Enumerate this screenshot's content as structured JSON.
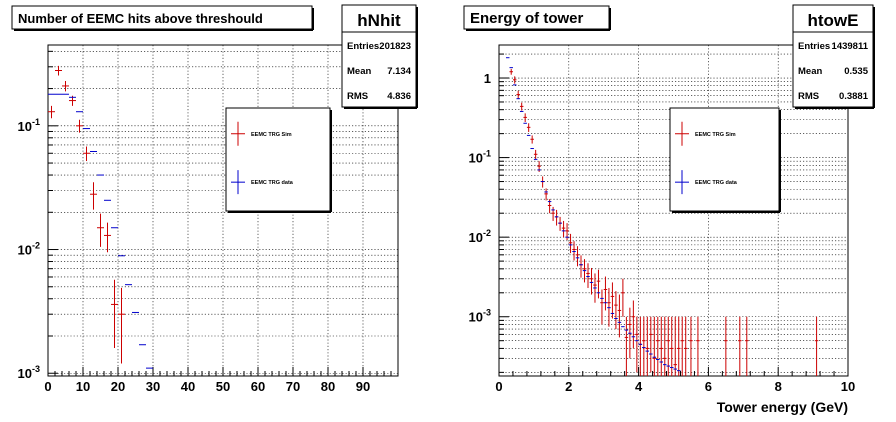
{
  "chart_data": [
    {
      "type": "scatter",
      "title": "Number of EEMC hits above threshould",
      "stats": {
        "name": "hNhit",
        "rows": [
          {
            "label": "Entries",
            "value": "201823"
          },
          {
            "label": "Mean",
            "value": "7.134"
          },
          {
            "label": "RMS",
            "value": "4.836"
          }
        ]
      },
      "xlabel": "",
      "ylabel": "",
      "xlim": [
        0,
        100
      ],
      "ylim": [
        0.00095,
        0.45
      ],
      "log_y": true,
      "grid": true,
      "x_ticks": [
        "0",
        "10",
        "20",
        "30",
        "40",
        "50",
        "60",
        "70",
        "80",
        "90"
      ],
      "y_ticks": [
        {
          "base": "10",
          "exp": "-1",
          "value": 0.1
        },
        {
          "base": "10",
          "exp": "-2",
          "value": 0.01
        },
        {
          "base": "10",
          "exp": "-3",
          "value": 0.001
        }
      ],
      "legend": {
        "position": "top-right",
        "entries": [
          "EEMC TRG Sim",
          "EEMC TRG data"
        ]
      },
      "series": [
        {
          "name": "EEMC TRG Sim",
          "color": "#cc0000",
          "bin_width": 2,
          "x": [
            1,
            3,
            5,
            7,
            9,
            11,
            13,
            15,
            17,
            19,
            21
          ],
          "y": [
            0.13,
            0.28,
            0.21,
            0.16,
            0.1,
            0.06,
            0.028,
            0.015,
            0.013,
            0.0036,
            0.003
          ],
          "err_lo": [
            0.115,
            0.255,
            0.19,
            0.145,
            0.088,
            0.052,
            0.021,
            0.0105,
            0.0095,
            0.0016,
            0.0012
          ],
          "err_hi": [
            0.145,
            0.305,
            0.23,
            0.175,
            0.112,
            0.068,
            0.035,
            0.0195,
            0.0165,
            0.0057,
            0.0049
          ]
        },
        {
          "name": "EEMC TRG data",
          "color": "#0000cc",
          "bin_width": 2,
          "x": [
            1,
            3,
            5,
            7,
            9,
            11,
            13,
            15,
            17,
            19,
            21,
            23,
            25,
            27,
            29
          ],
          "y": [
            0.18,
            0.18,
            0.18,
            0.17,
            0.13,
            0.095,
            0.062,
            0.04,
            0.025,
            0.015,
            0.0089,
            0.0052,
            0.0031,
            0.0017,
            0.0011
          ]
        }
      ]
    },
    {
      "type": "scatter",
      "title": "Energy of tower",
      "stats": {
        "name": "htowE",
        "rows": [
          {
            "label": "Entries",
            "value": "1439811"
          },
          {
            "label": "Mean",
            "value": "0.535"
          },
          {
            "label": "RMS",
            "value": "0.3881"
          }
        ]
      },
      "xlabel": "Tower energy (GeV)",
      "ylabel": "",
      "xlim": [
        0,
        10
      ],
      "ylim": [
        0.00018,
        2.6
      ],
      "log_y": true,
      "grid": true,
      "x_ticks": [
        "0",
        "2",
        "4",
        "6",
        "8",
        "10"
      ],
      "y_ticks": [
        {
          "base": "1",
          "exp": "",
          "value": 1
        },
        {
          "base": "10",
          "exp": "-1",
          "value": 0.1
        },
        {
          "base": "10",
          "exp": "-2",
          "value": 0.01
        },
        {
          "base": "10",
          "exp": "-3",
          "value": 0.001
        }
      ],
      "legend": {
        "position": "top-right",
        "entries": [
          "EEMC TRG Sim",
          "EEMC TRG data"
        ]
      },
      "series": [
        {
          "name": "EEMC TRG Sim",
          "color": "#cc0000",
          "bin_width": 0.1,
          "x": [
            0.35,
            0.45,
            0.55,
            0.65,
            0.75,
            0.85,
            0.95,
            1.05,
            1.15,
            1.25,
            1.35,
            1.45,
            1.55,
            1.65,
            1.75,
            1.85,
            1.95,
            2.05,
            2.15,
            2.25,
            2.35,
            2.45,
            2.55,
            2.65,
            2.75,
            2.85,
            2.95,
            3.05,
            3.15,
            3.25,
            3.35,
            3.45,
            3.55,
            3.65,
            3.75,
            3.85,
            3.95,
            4.05,
            4.15,
            4.25,
            4.35,
            4.45,
            4.55,
            4.65,
            4.75,
            4.85,
            4.95,
            5.05,
            5.15,
            5.25,
            5.35,
            5.5,
            5.7,
            6.5,
            6.9,
            7.1,
            9.1
          ],
          "y": [
            1.2,
            0.95,
            0.62,
            0.44,
            0.32,
            0.24,
            0.17,
            0.11,
            0.078,
            0.05,
            0.035,
            0.025,
            0.02,
            0.018,
            0.015,
            0.013,
            0.012,
            0.0085,
            0.007,
            0.006,
            0.0045,
            0.004,
            0.0035,
            0.003,
            0.0025,
            0.0028,
            0.0015,
            0.0022,
            0.0015,
            0.0018,
            0.0014,
            0.0012,
            0.002,
            0.00055,
            0.0008,
            0.001,
            0.0006,
            0.00045,
            0.0005,
            0.0004,
            0.0006,
            0.0003,
            0.0005,
            0.0004,
            0.0003,
            0.0005,
            0.0004,
            0.00025,
            0.0004,
            0.0005,
            0.0004,
            0.0005,
            0.0005,
            0.0005,
            0.0005,
            0.0005,
            0.0005
          ],
          "err_lo": [
            1.1,
            0.85,
            0.55,
            0.39,
            0.28,
            0.21,
            0.15,
            0.095,
            0.066,
            0.042,
            0.029,
            0.02,
            0.016,
            0.014,
            0.012,
            0.01,
            0.0092,
            0.0063,
            0.0051,
            0.0043,
            0.0031,
            0.0027,
            0.0023,
            0.0019,
            0.0015,
            0.0017,
            0.0008,
            0.0012,
            0.00075,
            0.00095,
            0.0007,
            0.00055,
            0.001,
            0.00018,
            0.0003,
            0.0004,
            0.0002,
            0.00018,
            0.00018,
            0.00018,
            0.0002,
            0.00018,
            0.00018,
            0.00018,
            0.00018,
            0.00018,
            0.00018,
            0.00018,
            0.00018,
            0.00018,
            0.00018,
            0.00018,
            0.00018,
            0.00018,
            0.00018,
            0.00018,
            0.00018
          ],
          "err_hi": [
            1.3,
            1.05,
            0.69,
            0.49,
            0.36,
            0.27,
            0.19,
            0.125,
            0.09,
            0.058,
            0.041,
            0.03,
            0.024,
            0.022,
            0.018,
            0.016,
            0.015,
            0.011,
            0.0089,
            0.0077,
            0.0059,
            0.0053,
            0.0047,
            0.0041,
            0.0035,
            0.0039,
            0.0022,
            0.0032,
            0.0023,
            0.0027,
            0.0021,
            0.0019,
            0.003,
            0.001,
            0.0013,
            0.0016,
            0.001,
            0.001,
            0.001,
            0.001,
            0.001,
            0.001,
            0.001,
            0.001,
            0.001,
            0.001,
            0.001,
            0.001,
            0.001,
            0.001,
            0.001,
            0.001,
            0.001,
            0.001,
            0.001,
            0.001,
            0.001
          ]
        },
        {
          "name": "EEMC TRG data",
          "color": "#0000cc",
          "bin_width": 0.1,
          "x": [
            0.25,
            0.35,
            0.45,
            0.55,
            0.65,
            0.75,
            0.85,
            0.95,
            1.05,
            1.15,
            1.25,
            1.35,
            1.45,
            1.55,
            1.65,
            1.75,
            1.85,
            1.95,
            2.05,
            2.15,
            2.25,
            2.35,
            2.45,
            2.55,
            2.65,
            2.75,
            2.85,
            2.95,
            3.05,
            3.15,
            3.25,
            3.35,
            3.45,
            3.55,
            3.65,
            3.75,
            3.85,
            3.95,
            4.05,
            4.15,
            4.25,
            4.35,
            4.45,
            4.55,
            4.65,
            4.75,
            4.85,
            4.95,
            5.05,
            5.15
          ],
          "y": [
            1.8,
            1.35,
            0.82,
            0.55,
            0.38,
            0.27,
            0.19,
            0.13,
            0.095,
            0.07,
            0.05,
            0.037,
            0.028,
            0.022,
            0.018,
            0.015,
            0.012,
            0.01,
            0.008,
            0.0066,
            0.0055,
            0.0045,
            0.0038,
            0.0032,
            0.0027,
            0.0023,
            0.002,
            0.0017,
            0.0015,
            0.0013,
            0.0011,
            0.00095,
            0.00085,
            0.00075,
            0.00068,
            0.00062,
            0.00056,
            0.0005,
            0.00045,
            0.00041,
            0.00037,
            0.00034,
            0.00031,
            0.00029,
            0.00027,
            0.00025,
            0.00024,
            0.00023,
            0.00022,
            0.00021
          ]
        }
      ]
    }
  ]
}
